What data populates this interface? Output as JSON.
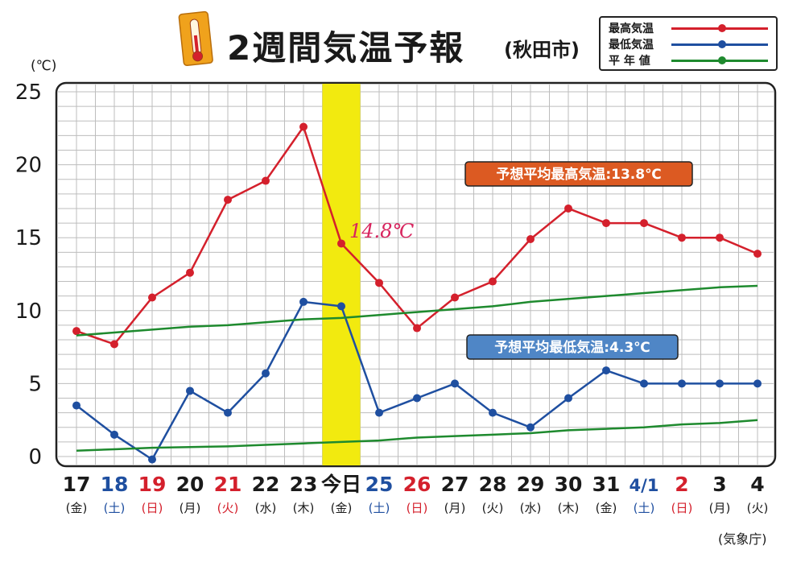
{
  "header": {
    "title": "2週間気温予報",
    "city": "(秋田市)",
    "unit": "(℃)",
    "source": "(気象庁)"
  },
  "legend": {
    "items": [
      {
        "label": "最高気温",
        "color": "#d4202c"
      },
      {
        "label": "最低気温",
        "color": "#1f4fa0"
      },
      {
        "label": "平 年 値",
        "color": "#1e8a2e"
      }
    ]
  },
  "boxes": {
    "max_avg": "予想平均最高気温:13.8℃",
    "min_avg": "予想平均最低気温:4.3℃",
    "handwritten": "14.8℃"
  },
  "chart_data": {
    "type": "line",
    "ylim": [
      0,
      25
    ],
    "yticks": [
      "0",
      "5",
      "10",
      "15",
      "20",
      "25"
    ],
    "x_dates": [
      "17",
      "18",
      "19",
      "20",
      "21",
      "22",
      "23",
      "今日",
      "25",
      "26",
      "27",
      "28",
      "29",
      "30",
      "31",
      "4/1",
      "2",
      "3",
      "4"
    ],
    "x_weekdays": [
      "(金)",
      "(土)",
      "(日)",
      "(月)",
      "(火)",
      "(水)",
      "(木)",
      "(金)",
      "(土)",
      "(日)",
      "(月)",
      "(火)",
      "(水)",
      "(木)",
      "(金)",
      "(土)",
      "(日)",
      "(月)",
      "(火)"
    ],
    "x_label_colors": [
      "#1a1a1a",
      "#1f4fa0",
      "#d4202c",
      "#1a1a1a",
      "#d4202c",
      "#1a1a1a",
      "#1a1a1a",
      "#1a1a1a",
      "#1f4fa0",
      "#d4202c",
      "#1a1a1a",
      "#1a1a1a",
      "#1a1a1a",
      "#1a1a1a",
      "#1a1a1a",
      "#1f4fa0",
      "#d4202c",
      "#1a1a1a",
      "#1a1a1a"
    ],
    "highlight_index": 7,
    "series": [
      {
        "name": "最高気温",
        "color": "#d4202c",
        "values": [
          8.6,
          7.7,
          10.9,
          12.6,
          17.6,
          18.9,
          22.6,
          14.6,
          11.9,
          8.8,
          10.9,
          12.0,
          14.9,
          17.0,
          16.0,
          16.0,
          15.0,
          15.0,
          13.9
        ]
      },
      {
        "name": "最低気温",
        "color": "#1f4fa0",
        "values": [
          3.5,
          1.5,
          -0.2,
          4.5,
          3.0,
          5.7,
          10.6,
          10.3,
          3.0,
          4.0,
          5.0,
          3.0,
          2.0,
          4.0,
          5.9,
          5.0,
          5.0,
          5.0,
          5.0
        ]
      },
      {
        "name": "平年値(最高)",
        "color": "#1e8a2e",
        "values": [
          8.3,
          8.5,
          8.7,
          8.9,
          9.0,
          9.2,
          9.4,
          9.5,
          9.7,
          9.9,
          10.1,
          10.3,
          10.6,
          10.8,
          11.0,
          11.2,
          11.4,
          11.6,
          11.7
        ]
      },
      {
        "name": "平年値(最低)",
        "color": "#1e8a2e",
        "values": [
          0.4,
          0.5,
          0.6,
          0.65,
          0.7,
          0.8,
          0.9,
          1.0,
          1.1,
          1.3,
          1.4,
          1.5,
          1.6,
          1.8,
          1.9,
          2.0,
          2.2,
          2.3,
          2.5
        ]
      }
    ]
  }
}
